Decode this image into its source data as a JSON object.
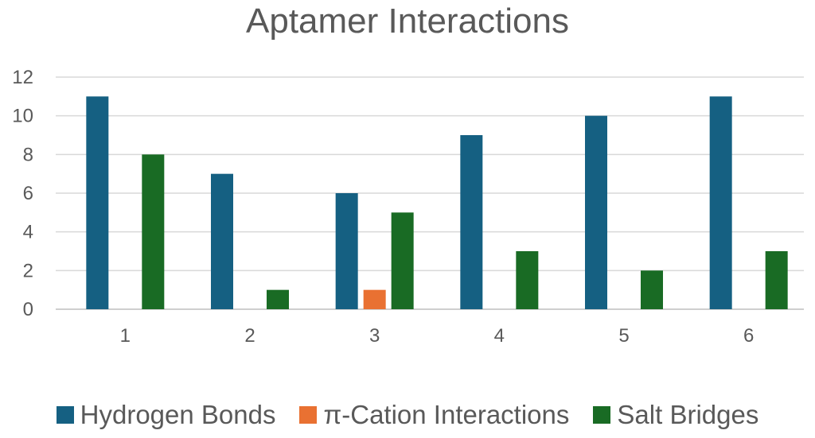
{
  "chart_data": {
    "type": "bar",
    "title": "Aptamer Interactions",
    "xlabel": "",
    "ylabel": "",
    "categories": [
      "1",
      "2",
      "3",
      "4",
      "5",
      "6"
    ],
    "ylim": [
      0,
      12
    ],
    "yticks": [
      "0",
      "2",
      "4",
      "6",
      "8",
      "10",
      "12"
    ],
    "grid": true,
    "legend_position": "bottom",
    "series": [
      {
        "name": "Hydrogen Bonds",
        "color": "#156082",
        "values": [
          11,
          7,
          6,
          9,
          10,
          11
        ]
      },
      {
        "name": "π-Cation Interactions",
        "color": "#E97132",
        "values": [
          0,
          0,
          1,
          0,
          0,
          0
        ]
      },
      {
        "name": "Salt Bridges",
        "color": "#196B24",
        "values": [
          8,
          1,
          5,
          3,
          2,
          3
        ]
      }
    ]
  }
}
